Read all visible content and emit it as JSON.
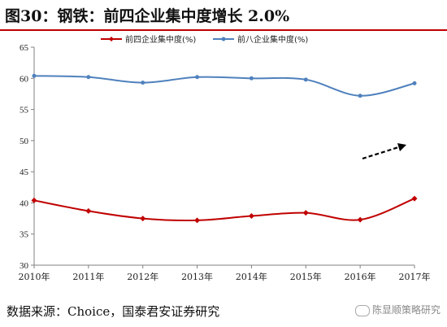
{
  "title": "图30：钢铁：前四企业集中度增长 2.0%",
  "source": "数据来源：Choice，国泰君安证券研究",
  "watermark": "陈显顺策略研究",
  "chart_data": {
    "type": "line",
    "categories": [
      "2010年",
      "2011年",
      "2012年",
      "2013年",
      "2014年",
      "2015年",
      "2016年",
      "2017年"
    ],
    "series": [
      {
        "name": "前四企业集中度(%)",
        "color": "#c00000",
        "values": [
          40.4,
          38.7,
          37.5,
          37.2,
          37.9,
          38.4,
          37.3,
          40.7
        ]
      },
      {
        "name": "前八企业集中度(%)",
        "color": "#4f81bd",
        "values": [
          60.4,
          60.2,
          59.3,
          60.2,
          60.0,
          59.8,
          57.2,
          59.2
        ]
      }
    ],
    "yticks": [
      30,
      35,
      40,
      45,
      50,
      55,
      60,
      65
    ],
    "ylim": [
      30,
      65
    ],
    "legend": "top-center",
    "grid": false,
    "annotation": "dashed upward arrow"
  }
}
